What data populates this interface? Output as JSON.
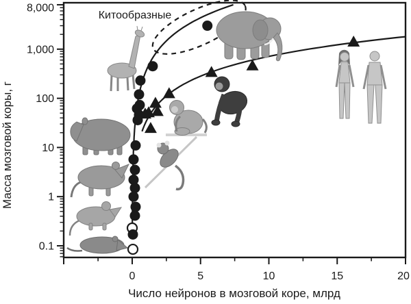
{
  "figure": {
    "background_color": "#ffffff",
    "ink_color": "#1a1a1a",
    "illustration_gray": "#9a9a9a"
  },
  "chart_data": {
    "type": "scatter",
    "title": "",
    "xlabel": "Число нейронов в мозговой коре, млрд",
    "ylabel": "Масса мозговой коры, г",
    "grid": false,
    "legend": "none",
    "x_axis": {
      "scale": "linear",
      "range": [
        -5,
        20
      ],
      "major_ticks": [
        0,
        5,
        10,
        15,
        20
      ],
      "major_tick_labels": [
        "0",
        "5",
        "10",
        "15",
        "20"
      ],
      "minor_ticks": [
        -2.5,
        2.5,
        7.5,
        12.5,
        17.5
      ]
    },
    "y_axis": {
      "scale": "log",
      "range": [
        0.058,
        8000
      ],
      "major_ticks": [
        0.1,
        1,
        10,
        100,
        1000,
        8000
      ],
      "major_tick_labels": [
        "0.1",
        "1",
        "10",
        "100",
        "1,000",
        "8,000"
      ]
    },
    "series": [
      {
        "name": "non_primates",
        "marker": "filled-circle",
        "color": "#1a1a1a",
        "points": [
          [
            5.5,
            3000
          ],
          [
            1.5,
            450
          ],
          [
            0.6,
            230
          ],
          [
            0.5,
            120
          ],
          [
            0.55,
            73
          ],
          [
            0.35,
            62
          ],
          [
            0.5,
            46
          ],
          [
            0.4,
            36
          ],
          [
            0.25,
            11
          ],
          [
            0.1,
            5.7
          ],
          [
            0.2,
            3.5
          ],
          [
            0.1,
            2.2
          ],
          [
            0.2,
            1.5
          ],
          [
            0.1,
            1.0
          ],
          [
            0.25,
            0.62
          ],
          [
            0.2,
            0.41
          ],
          [
            0.05,
            0.17
          ]
        ]
      },
      {
        "name": "small_insectivores",
        "marker": "open-circle",
        "color": "#1a1a1a",
        "points": [
          [
            0.0,
            0.23
          ],
          [
            0.05,
            0.085
          ]
        ]
      },
      {
        "name": "primates",
        "marker": "filled-triangle",
        "color": "#1a1a1a",
        "points": [
          [
            0.95,
            47
          ],
          [
            1.2,
            50
          ],
          [
            1.85,
            53
          ],
          [
            1.7,
            78
          ],
          [
            1.35,
            24
          ],
          [
            2.7,
            122
          ],
          [
            5.8,
            330
          ],
          [
            8.8,
            450
          ],
          [
            16.2,
            1370
          ]
        ]
      }
    ],
    "curves": [
      {
        "name": "non_primate_scaling_fit",
        "power_law": {
          "a": 353,
          "b": 1.56
        },
        "n_min": 0.008,
        "n_max": 7.4,
        "style": "solid"
      },
      {
        "name": "primate_scaling_fit",
        "power_law": {
          "a": 32.9,
          "b": 1.335
        },
        "n_min": 0.72,
        "n_max": 20,
        "style": "solid"
      }
    ],
    "annotations": [
      {
        "name": "cetaceans_region",
        "label": "Китообразные",
        "shape": "dashed-ellipse",
        "center": [
          4.9,
          2800
        ]
      }
    ]
  },
  "animals": [
    {
      "name": "giraffe"
    },
    {
      "name": "elephant"
    },
    {
      "name": "capybara"
    },
    {
      "name": "rat"
    },
    {
      "name": "mouse"
    },
    {
      "name": "shrew"
    },
    {
      "name": "macaque"
    },
    {
      "name": "marmoset"
    },
    {
      "name": "chimpanzee"
    },
    {
      "name": "human-female"
    },
    {
      "name": "human-male"
    }
  ]
}
